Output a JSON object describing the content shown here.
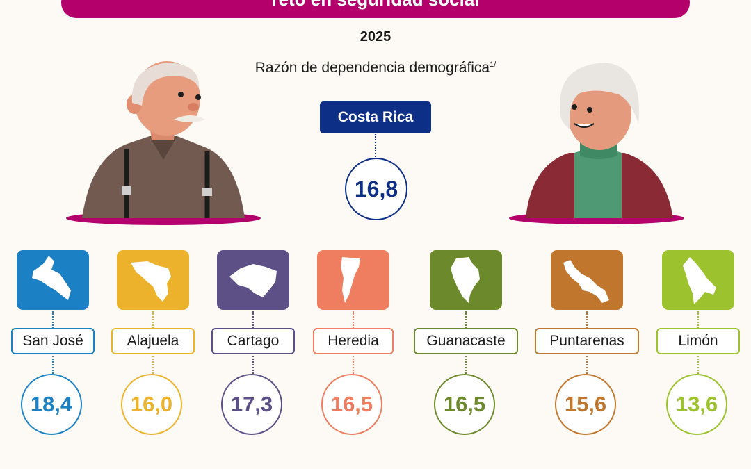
{
  "header": {
    "banner_text": "reto en seguridad social",
    "year": "2025",
    "subtitle": "Razón de dependencia demográfica",
    "subtitle_note": "1/"
  },
  "country": {
    "name": "Costa Rica",
    "value": "16,8",
    "color": "#0e2f86"
  },
  "provinces": [
    {
      "name": "San José",
      "value": "18,4",
      "color": "#1b80c4"
    },
    {
      "name": "Alajuela",
      "value": "16,0",
      "color": "#edb22c"
    },
    {
      "name": "Cartago",
      "value": "17,3",
      "color": "#5c5087"
    },
    {
      "name": "Heredia",
      "value": "16,5",
      "color": "#ef7d5f"
    },
    {
      "name": "Guanacaste",
      "value": "16,5",
      "color": "#6c8a2b"
    },
    {
      "name": "Puntarenas",
      "value": "15,6",
      "color": "#c1762d"
    },
    {
      "name": "Limón",
      "value": "13,6",
      "color": "#9cc32e"
    }
  ],
  "footnote": "",
  "colors": {
    "brand": "#b3006a",
    "background": "#fdf9f4"
  },
  "icons": [
    "elderly-man-icon",
    "elderly-woman-icon",
    "province-map-icon"
  ]
}
